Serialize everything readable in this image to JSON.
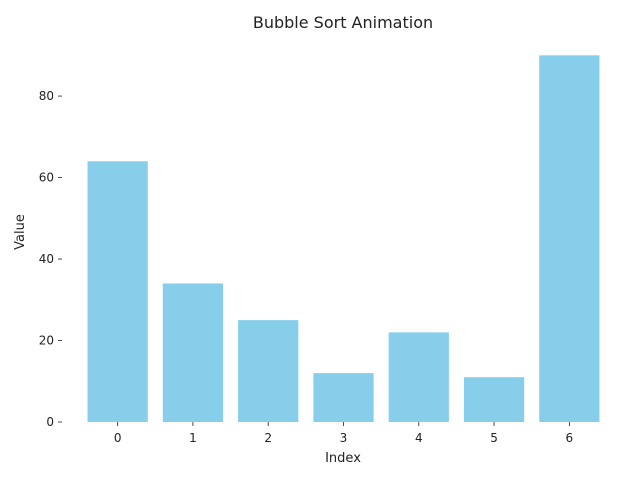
{
  "chart_data": {
    "type": "bar",
    "title": "Bubble Sort Animation",
    "xlabel": "Index",
    "ylabel": "Value",
    "categories": [
      "0",
      "1",
      "2",
      "3",
      "4",
      "5",
      "6"
    ],
    "values": [
      64,
      34,
      25,
      12,
      22,
      11,
      90
    ],
    "ylim": [
      0,
      94.5
    ],
    "yticks": [
      0,
      20,
      40,
      60,
      80
    ],
    "grid": false,
    "legend": "none",
    "bar_color": "#87ceeb"
  }
}
